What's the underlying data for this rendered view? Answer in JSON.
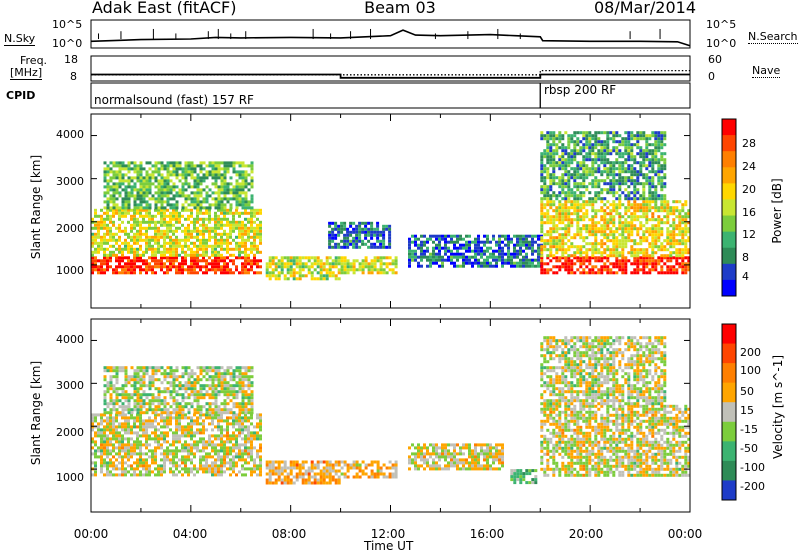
{
  "header": {
    "station": "Adak East (fitACF)",
    "beam": "Beam 03",
    "date": "08/Mar/2014"
  },
  "top_panels": {
    "nsky_label": "N.Sky",
    "nsearch_label": "N.Search",
    "noise_ticks_left": [
      "10^5",
      "10^0"
    ],
    "noise_ticks_right": [
      "10^5",
      "10^0"
    ],
    "freq_label_1": "Freq.",
    "freq_label_2": "[MHz]",
    "freq_ticks": [
      "18",
      "8"
    ],
    "nave_label": "Nave",
    "nave_ticks": [
      "60",
      "0"
    ],
    "cpid_label": "CPID",
    "cpid_1": "normalsound (fast) 157 RF",
    "cpid_2": "rbsp 200 RF"
  },
  "power_panel": {
    "ylabel": "Slant Range [km]",
    "yticks": [
      "4000",
      "3000",
      "2000",
      "1000"
    ],
    "colorbar_label": "Power [dB]",
    "colorbar_ticks": [
      "28",
      "24",
      "20",
      "16",
      "12",
      "8",
      "4"
    ],
    "colors": [
      "#0000ff",
      "#1e3cc8",
      "#2e8b57",
      "#3cb371",
      "#7ccd3c",
      "#c8e632",
      "#ffd700",
      "#ffa500",
      "#ff7f00",
      "#ff4500",
      "#ff0000"
    ]
  },
  "velocity_panel": {
    "ylabel": "Slant Range [km]",
    "yticks": [
      "4000",
      "3000",
      "2000",
      "1000"
    ],
    "colorbar_label": "Velocity [m s^-1]",
    "colorbar_ticks": [
      "200",
      "100",
      "50",
      "15",
      "-15",
      "-50",
      "-100",
      "-200"
    ],
    "colors": [
      "#1e3cc8",
      "#2e8b57",
      "#3cb371",
      "#7ccd3c",
      "#c0c0b8",
      "#ffa500",
      "#ff7f00",
      "#ff4500",
      "#ff0000"
    ]
  },
  "xaxis": {
    "label": "Time UT",
    "ticks": [
      "00:00",
      "04:00",
      "08:00",
      "12:00",
      "16:00",
      "20:00",
      "00:00"
    ]
  },
  "chart_data": {
    "type": "heatmap",
    "title": "Adak East (fitACF) Beam 03 08/Mar/2014",
    "xlabel": "Time UT",
    "ylabel": "Slant Range [km]",
    "xlim_hours": [
      0,
      24
    ],
    "ylim_km": [
      0,
      4500
    ],
    "noise_sky": {
      "t": [
        0,
        2,
        4,
        5,
        6,
        8,
        10,
        11,
        12,
        12.5,
        13,
        14,
        16,
        17,
        18,
        18.1,
        20,
        22,
        23.5,
        24
      ],
      "log10": [
        1.2,
        1.5,
        1.6,
        1.9,
        1.8,
        1.9,
        1.8,
        2.0,
        2.2,
        3.2,
        2.3,
        2.2,
        2.4,
        2.2,
        2.0,
        1.3,
        1.2,
        1.2,
        1.1,
        0.4
      ]
    },
    "frequency_mhz": {
      "t": [
        0,
        10,
        10,
        18,
        18,
        24
      ],
      "mhz": [
        10.6,
        10.6,
        9.3,
        9.3,
        10.6,
        10.6
      ]
    },
    "nave": {
      "t": [
        0,
        18,
        18,
        24
      ],
      "value": [
        15,
        15,
        25,
        25
      ]
    },
    "cpid": [
      {
        "start_h": 0,
        "end_h": 18,
        "label": "normalsound (fast) 157 RF"
      },
      {
        "start_h": 18,
        "end_h": 24,
        "label": "rbsp 200 RF"
      }
    ],
    "power_db": {
      "range": [
        0,
        30
      ],
      "regions": [
        {
          "t": [
            0,
            6.8
          ],
          "r_km": [
            850,
            1200
          ],
          "value": 28
        },
        {
          "t": [
            0,
            6.8
          ],
          "r_km": [
            1200,
            2300
          ],
          "value": 16
        },
        {
          "t": [
            0.5,
            6.5
          ],
          "r_km": [
            2300,
            3400
          ],
          "value": 11
        },
        {
          "t": [
            7,
            10
          ],
          "r_km": [
            650,
            1200
          ],
          "value": 15
        },
        {
          "t": [
            10,
            12.2
          ],
          "r_km": [
            850,
            1200
          ],
          "value": 16
        },
        {
          "t": [
            9.5,
            12
          ],
          "r_km": [
            1400,
            2000
          ],
          "value": 6
        },
        {
          "t": [
            12.7,
            18
          ],
          "r_km": [
            1000,
            1700
          ],
          "value": 6
        },
        {
          "t": [
            18,
            24
          ],
          "r_km": [
            850,
            1200
          ],
          "value": 28
        },
        {
          "t": [
            18,
            24
          ],
          "r_km": [
            1200,
            2500
          ],
          "value": 17
        },
        {
          "t": [
            18,
            23
          ],
          "r_km": [
            2500,
            4100
          ],
          "value": 9
        }
      ]
    },
    "velocity_ms": {
      "range": [
        -250,
        250
      ],
      "regions": [
        {
          "t": [
            0,
            6.8
          ],
          "r_km": [
            850,
            2300
          ],
          "value": 0
        },
        {
          "t": [
            0.5,
            6.5
          ],
          "r_km": [
            2300,
            3400
          ],
          "value": -20
        },
        {
          "t": [
            7,
            10
          ],
          "r_km": [
            650,
            1200
          ],
          "value": 60
        },
        {
          "t": [
            10,
            12.2
          ],
          "r_km": [
            850,
            1200
          ],
          "value": 40
        },
        {
          "t": [
            12.7,
            16.5
          ],
          "r_km": [
            1000,
            1600
          ],
          "value": 10
        },
        {
          "t": [
            16.8,
            17.8
          ],
          "r_km": [
            700,
            1000
          ],
          "value": -90
        },
        {
          "t": [
            18,
            24
          ],
          "r_km": [
            850,
            2500
          ],
          "value": 0
        },
        {
          "t": [
            18,
            23
          ],
          "r_km": [
            2500,
            4100
          ],
          "value": -10
        }
      ]
    }
  }
}
